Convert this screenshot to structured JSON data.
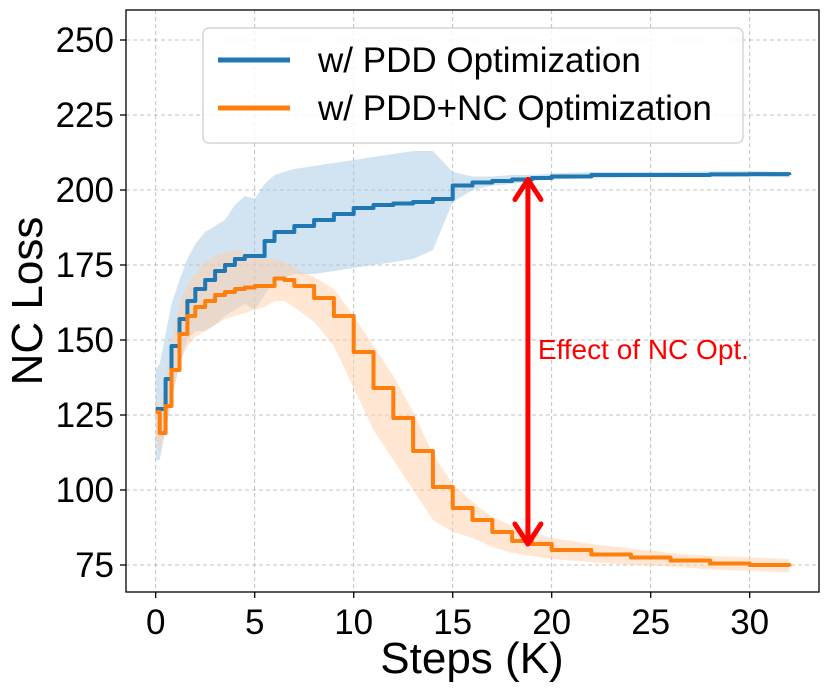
{
  "chart_data": {
    "type": "line",
    "xlabel": "Steps (K)",
    "ylabel": "NC Loss",
    "xlim": [
      -1.5,
      33.5
    ],
    "ylim": [
      66,
      260
    ],
    "xticks": [
      0,
      5,
      10,
      15,
      20,
      25,
      30
    ],
    "xtick_labels": [
      "0",
      "5",
      "10",
      "15",
      "20",
      "25",
      "30"
    ],
    "yticks": [
      75,
      100,
      125,
      150,
      175,
      200,
      225,
      250
    ],
    "ytick_labels": [
      "75",
      "100",
      "125",
      "150",
      "175",
      "200",
      "225",
      "250"
    ],
    "grid": true,
    "legend_position": "top-center",
    "series": [
      {
        "name": "w/ PDD Optimization",
        "color": "#1f77b4",
        "band_color": "#a6c8e4",
        "x": [
          0,
          0.2,
          0.5,
          0.8,
          1.2,
          1.6,
          2,
          2.5,
          3,
          3.5,
          4,
          4.5,
          5,
          5.5,
          6,
          7,
          8,
          9,
          10,
          11,
          12,
          13,
          14,
          15,
          16,
          17,
          18,
          19,
          20,
          22,
          25,
          28,
          30,
          32
        ],
        "y": [
          127,
          127,
          137,
          148,
          157,
          163,
          167,
          170,
          173,
          175,
          177,
          178,
          178,
          183,
          186,
          188,
          190,
          192,
          194,
          195,
          195.5,
          196,
          197,
          201.5,
          202.5,
          203,
          203.5,
          204,
          204.5,
          205,
          205,
          205.2,
          205.3,
          205
        ],
        "lower": [
          110,
          110,
          120,
          130,
          142,
          150,
          153,
          153,
          155,
          158,
          160,
          162,
          160,
          165,
          170,
          172,
          172,
          173,
          174,
          175,
          176,
          177,
          180,
          196,
          200,
          201.5,
          202,
          203,
          203.5,
          204,
          204.2,
          204.4,
          204.5,
          204.2
        ],
        "upper": [
          140,
          142,
          152,
          162,
          170,
          177,
          182,
          186,
          188,
          190,
          195,
          198,
          197,
          202,
          205,
          207,
          208,
          209,
          210,
          211,
          212,
          213,
          213,
          206,
          204.5,
          204.5,
          205,
          205,
          205.5,
          206,
          206,
          206.2,
          206.3,
          206
        ]
      },
      {
        "name": "w/ PDD+NC Optimization",
        "color": "#ff7f0e",
        "band_color": "#ffcfa8",
        "x": [
          0,
          0.2,
          0.5,
          0.8,
          1.2,
          1.6,
          2,
          2.5,
          3,
          3.5,
          4,
          4.5,
          5,
          5.5,
          6,
          6.5,
          7,
          8,
          9,
          10,
          11,
          12,
          13,
          14,
          15,
          16,
          17,
          18,
          19,
          20,
          22,
          24,
          26,
          28,
          30,
          32
        ],
        "y": [
          126,
          119,
          128,
          140,
          152,
          158,
          161,
          163,
          165,
          166,
          167,
          167.5,
          168,
          168,
          170.5,
          170,
          168,
          164,
          158,
          146,
          134,
          124,
          113,
          101,
          94,
          90,
          86,
          83,
          82,
          80,
          78.5,
          77.5,
          76.5,
          75.5,
          75,
          74.5
        ],
        "lower": [
          118,
          113,
          120,
          130,
          142,
          148,
          151,
          153,
          155,
          157,
          158,
          159,
          160,
          161,
          163,
          163,
          161,
          156,
          148,
          134,
          120,
          110,
          100,
          90,
          86,
          84,
          81,
          79,
          78,
          77,
          76,
          75,
          74.5,
          73.5,
          73,
          72.5
        ],
        "upper": [
          132,
          126,
          136,
          150,
          162,
          168,
          172,
          176,
          178,
          179,
          180,
          179,
          178,
          177,
          177,
          176,
          174,
          171,
          167,
          158,
          148,
          138,
          126,
          112,
          102,
          96,
          91,
          88,
          86,
          84,
          82,
          80.5,
          79,
          78,
          77.5,
          77
        ]
      }
    ],
    "annotation": {
      "text": "Effect of NC Opt.",
      "color": "#ff0000",
      "x": 18.8,
      "y_start": 82,
      "y_end": 203.5,
      "text_x": 19.3,
      "text_y": 147
    }
  }
}
